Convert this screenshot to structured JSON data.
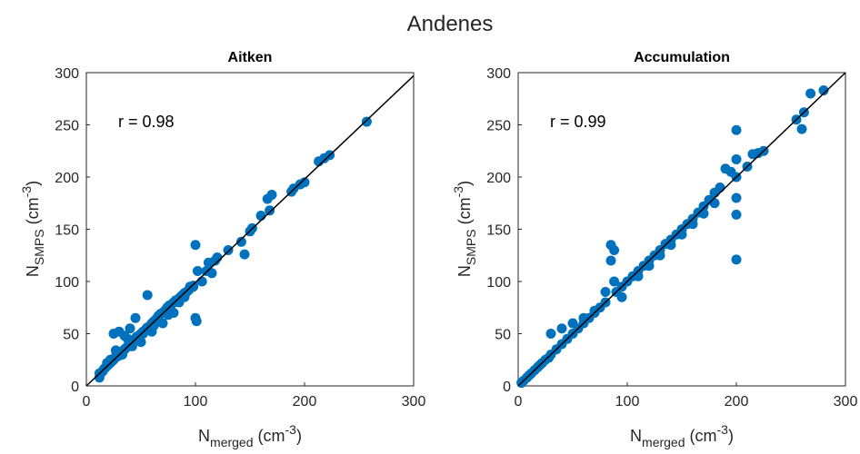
{
  "figure": {
    "title": "Andenes"
  },
  "chart_data": [
    {
      "type": "scatter",
      "title": "Aitken",
      "xlabel": {
        "base": "N",
        "sub": "merged",
        "unit_prefix": "(cm",
        "unit_sup": "-3",
        "unit_suffix": ")"
      },
      "ylabel": {
        "base": "N",
        "sub": "SMPS",
        "unit_prefix": "(cm",
        "unit_sup": "-3",
        "unit_suffix": ")"
      },
      "xlim": [
        0,
        300
      ],
      "ylim": [
        0,
        300
      ],
      "xticks": [
        "0",
        "100",
        "200",
        "300"
      ],
      "yticks": [
        "0",
        "50",
        "100",
        "150",
        "200",
        "250",
        "300"
      ],
      "annotation": "r = 0.98",
      "fit_line": [
        [
          0,
          0
        ],
        [
          300,
          297
        ]
      ],
      "point_color": "#0072BD",
      "line_color": "#000000",
      "series": [
        {
          "x": [
            257,
            223,
            218,
            213,
            200,
            196,
            190,
            188,
            170,
            166,
            168,
            160,
            152,
            150,
            145,
            142,
            120,
            118,
            112,
            115,
            106,
            102,
            100,
            100,
            101,
            98,
            95,
            94,
            92,
            90,
            88,
            86,
            84,
            82,
            80,
            78,
            76,
            74,
            72,
            70,
            68,
            66,
            65,
            64,
            62,
            60,
            60,
            58,
            56,
            55,
            54,
            52,
            50,
            50,
            48,
            46,
            45,
            44,
            42,
            40,
            40,
            38,
            36,
            35,
            34,
            32,
            30,
            30,
            28,
            26,
            25,
            24,
            22,
            22,
            20,
            18,
            17,
            16,
            15,
            14,
            12,
            12,
            45,
            56,
            30,
            40,
            25,
            35,
            50,
            70,
            60,
            80,
            33,
            42,
            28,
            22,
            19,
            27,
            38,
            52,
            62,
            75,
            85,
            90,
            98,
            110,
            130
          ],
          "y": [
            253,
            221,
            218,
            215,
            195,
            193,
            189,
            186,
            183,
            179,
            168,
            163,
            151,
            148,
            126,
            138,
            123,
            120,
            118,
            108,
            100,
            110,
            135,
            65,
            62,
            96,
            95,
            92,
            90,
            89,
            87,
            85,
            83,
            82,
            80,
            78,
            77,
            75,
            72,
            70,
            69,
            67,
            65,
            64,
            62,
            60,
            58,
            57,
            56,
            55,
            53,
            52,
            50,
            49,
            48,
            47,
            45,
            44,
            42,
            40,
            39,
            38,
            36,
            35,
            34,
            32,
            30,
            29,
            28,
            27,
            25,
            24,
            23,
            22,
            20,
            18,
            17,
            16,
            14,
            13,
            12,
            8,
            65,
            87,
            52,
            55,
            50,
            48,
            42,
            60,
            52,
            70,
            30,
            38,
            30,
            25,
            22,
            34,
            45,
            50,
            58,
            68,
            80,
            85,
            95,
            110,
            130
          ]
        }
      ]
    },
    {
      "type": "scatter",
      "title": "Accumulation",
      "xlabel": {
        "base": "N",
        "sub": "merged",
        "unit_prefix": "(cm",
        "unit_sup": "-3",
        "unit_suffix": ")"
      },
      "ylabel": {
        "base": "N",
        "sub": "SMPS",
        "unit_prefix": "(cm",
        "unit_sup": "-3",
        "unit_suffix": ")"
      },
      "xlim": [
        0,
        300
      ],
      "ylim": [
        0,
        300
      ],
      "xticks": [
        "0",
        "100",
        "200",
        "300"
      ],
      "yticks": [
        "0",
        "50",
        "100",
        "150",
        "200",
        "250",
        "300"
      ],
      "annotation": "r = 0.99",
      "fit_line": [
        [
          0,
          0
        ],
        [
          300,
          300
        ]
      ],
      "point_color": "#0072BD",
      "line_color": "#000000",
      "series": [
        {
          "x": [
            280,
            268,
            262,
            260,
            255,
            225,
            220,
            215,
            210,
            200,
            200,
            200,
            200,
            200,
            200,
            195,
            190,
            185,
            180,
            175,
            170,
            165,
            160,
            155,
            150,
            145,
            140,
            135,
            130,
            125,
            120,
            115,
            110,
            105,
            100,
            95,
            90,
            88,
            85,
            80,
            75,
            70,
            65,
            60,
            55,
            50,
            45,
            40,
            35,
            30,
            28,
            25,
            22,
            20,
            18,
            15,
            12,
            10,
            8,
            5,
            3,
            85,
            88,
            95,
            30,
            40,
            50,
            60,
            70,
            80,
            110,
            120,
            140,
            160,
            180,
            130,
            150,
            170
          ],
          "y": [
            283,
            280,
            262,
            246,
            255,
            225,
            223,
            222,
            210,
            245,
            217,
            180,
            164,
            121,
            200,
            205,
            208,
            190,
            185,
            178,
            172,
            166,
            160,
            155,
            150,
            145,
            140,
            136,
            130,
            125,
            120,
            115,
            110,
            105,
            100,
            95,
            90,
            130,
            135,
            80,
            75,
            70,
            65,
            60,
            55,
            50,
            45,
            40,
            35,
            30,
            27,
            25,
            22,
            20,
            18,
            15,
            12,
            10,
            8,
            5,
            3,
            120,
            100,
            85,
            50,
            55,
            60,
            65,
            72,
            90,
            105,
            115,
            135,
            155,
            175,
            125,
            145,
            165
          ]
        }
      ]
    }
  ]
}
